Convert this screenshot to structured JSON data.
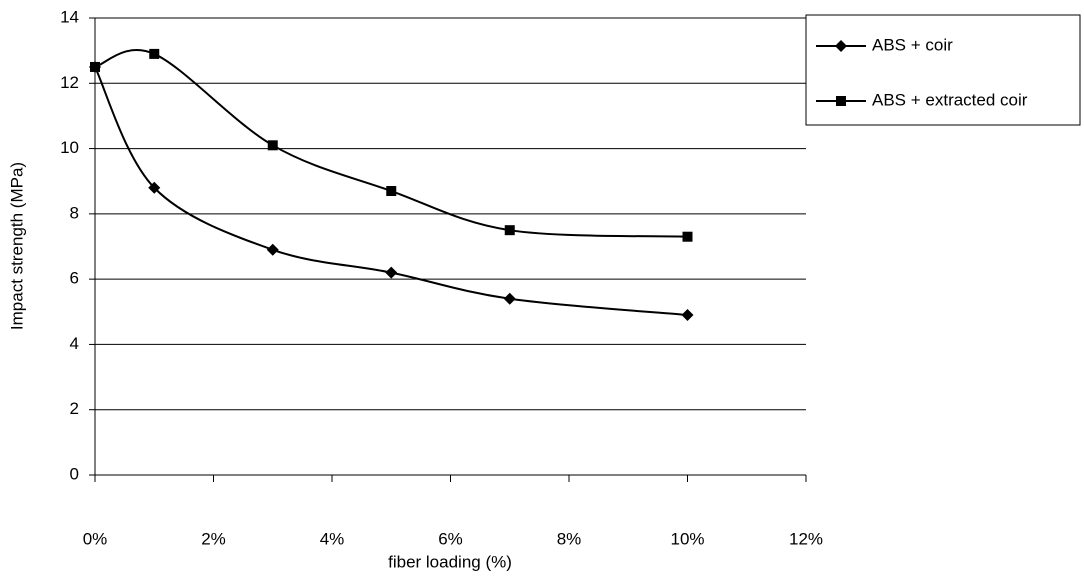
{
  "chart_data": {
    "type": "line",
    "smooth": true,
    "x_label": "fiber loading (%)",
    "y_label": "Impact strength (MPa)",
    "x": [
      0,
      1,
      3,
      5,
      7,
      10
    ],
    "series": [
      {
        "name": "ABS + coir",
        "color": "#000000",
        "marker": "diamond",
        "values": [
          12.5,
          8.8,
          6.9,
          6.2,
          5.4,
          4.9
        ]
      },
      {
        "name": "ABS + extracted coir",
        "color": "#000000",
        "marker": "square",
        "values": [
          12.5,
          12.9,
          10.1,
          8.7,
          7.5,
          7.3
        ]
      }
    ],
    "xlim": [
      0,
      12
    ],
    "xticks": [
      {
        "value": 0,
        "label": "0%"
      },
      {
        "value": 2,
        "label": "2%"
      },
      {
        "value": 4,
        "label": "4%"
      },
      {
        "value": 6,
        "label": "6%"
      },
      {
        "value": 8,
        "label": "8%"
      },
      {
        "value": 10,
        "label": "10%"
      },
      {
        "value": 12,
        "label": "12%"
      }
    ],
    "ylim": [
      0,
      14
    ],
    "yticks": [
      0,
      2,
      4,
      6,
      8,
      10,
      12,
      14
    ],
    "grid": true,
    "legend": "right"
  }
}
